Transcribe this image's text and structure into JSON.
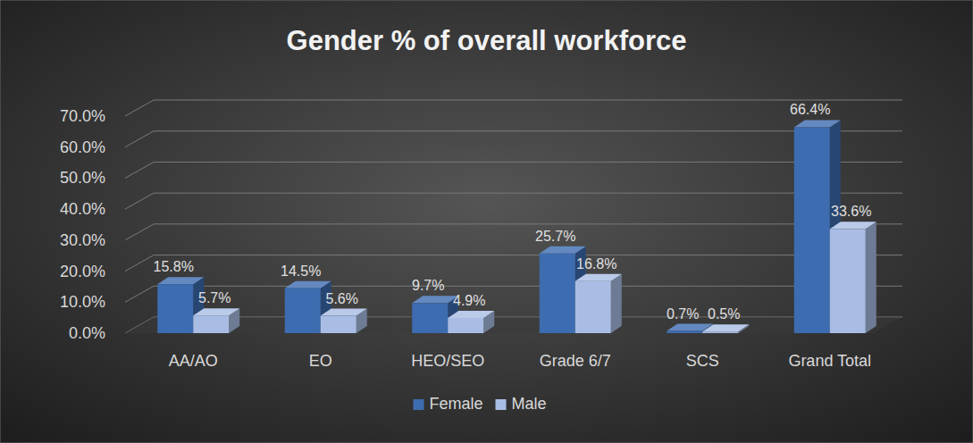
{
  "chart_data": {
    "type": "bar",
    "title": "Gender % of overall workforce",
    "categories": [
      "AA/AO",
      "EO",
      "HEO/SEO",
      "Grade 6/7",
      "SCS",
      "Grand Total"
    ],
    "series": [
      {
        "name": "Female",
        "color": "#3d6cb0",
        "values": [
          15.8,
          14.5,
          9.7,
          25.7,
          0.7,
          66.4
        ],
        "value_labels": [
          "15.8%",
          "14.5%",
          "9.7%",
          "25.7%",
          "0.7%",
          "66.4%"
        ]
      },
      {
        "name": "Male",
        "color": "#a9bde4",
        "values": [
          5.7,
          5.6,
          4.9,
          16.8,
          0.5,
          33.6
        ],
        "value_labels": [
          "5.7%",
          "5.6%",
          "4.9%",
          "16.8%",
          "0.5%",
          "33.6%"
        ]
      }
    ],
    "ylim": [
      0,
      70
    ],
    "yticks": [
      {
        "value": 0,
        "label": "0.0%"
      },
      {
        "value": 10,
        "label": "10.0%"
      },
      {
        "value": 20,
        "label": "20.0%"
      },
      {
        "value": 30,
        "label": "30.0%"
      },
      {
        "value": 40,
        "label": "40.0%"
      },
      {
        "value": 50,
        "label": "50.0%"
      },
      {
        "value": 60,
        "label": "60.0%"
      },
      {
        "value": 70,
        "label": "70.0%"
      }
    ],
    "grid": true,
    "data_labels": true,
    "legend": "bottom"
  }
}
